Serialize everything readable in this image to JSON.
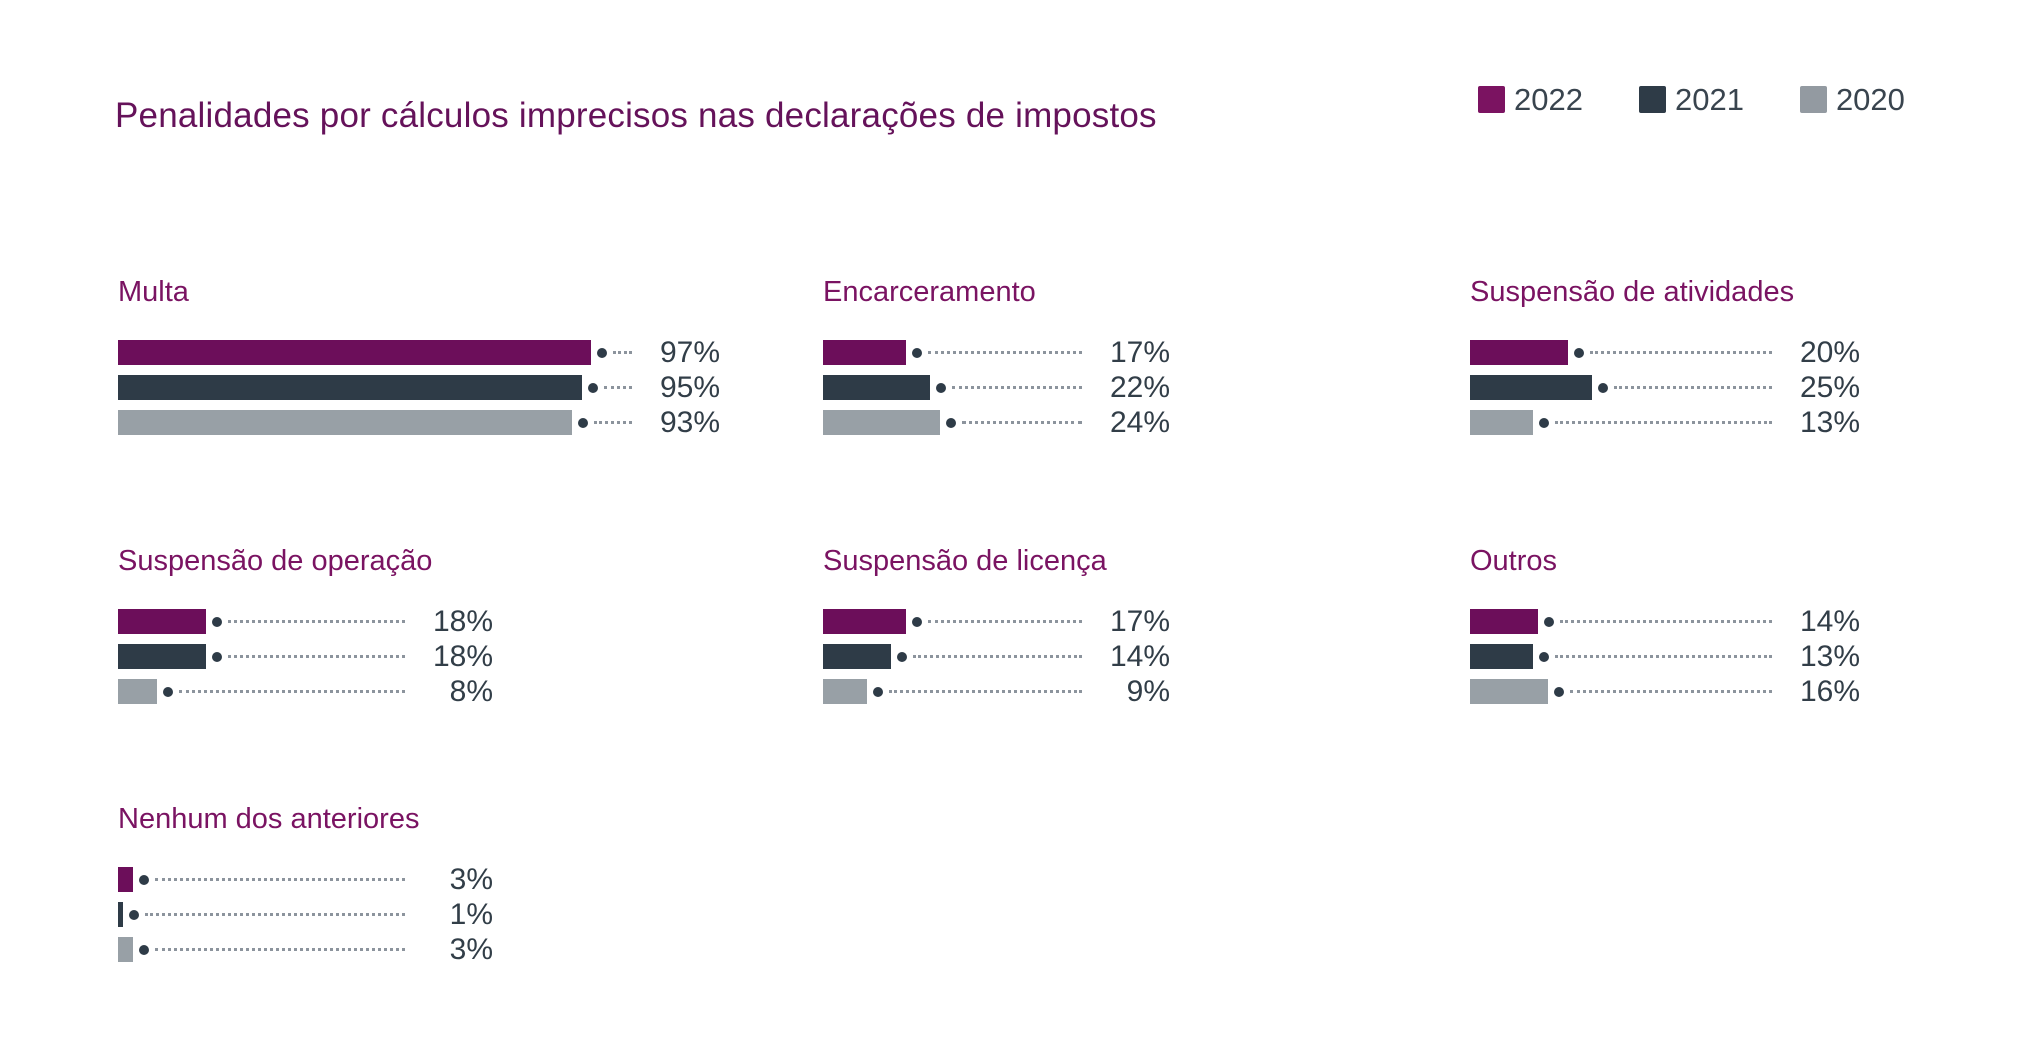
{
  "title": "Penalidades por cálculos imprecisos nas declarações de impostos",
  "legend": {
    "items": [
      {
        "label": "2022",
        "color": "#7B1361"
      },
      {
        "label": "2021",
        "color": "#2E3B47"
      },
      {
        "label": "2020",
        "color": "#939AA1"
      }
    ]
  },
  "colors": {
    "title": "#65125A",
    "panel_title": "#7A1362",
    "value_label": "#323E48",
    "leader_dot": "#2E3B47",
    "leader_line": "#8C949D",
    "background": "#FFFFFF"
  },
  "chart_data": {
    "type": "bar",
    "orientation": "horizontal",
    "title": "Penalidades por cálculos imprecisos nas declarações de impostos",
    "unit": "%",
    "xlim": [
      0,
      100
    ],
    "grid": false,
    "legend_position": "top-right",
    "series_names": [
      "2022",
      "2021",
      "2020"
    ],
    "series_colors": [
      "#6C0E5A",
      "#2E3B47",
      "#98A0A6"
    ],
    "panels": [
      {
        "title": "Multa",
        "values": [
          97,
          95,
          93
        ],
        "labels": [
          "97%",
          "95%",
          "93%"
        ]
      },
      {
        "title": "Encarceramento",
        "values": [
          17,
          22,
          24
        ],
        "labels": [
          "17%",
          "22%",
          "24%"
        ]
      },
      {
        "title": "Suspensão de atividades",
        "values": [
          20,
          25,
          13
        ],
        "labels": [
          "20%",
          "25%",
          "13%"
        ]
      },
      {
        "title": "Suspensão de operação",
        "values": [
          18,
          18,
          8
        ],
        "labels": [
          "18%",
          "18%",
          "8%"
        ]
      },
      {
        "title": "Suspensão de licença",
        "values": [
          17,
          14,
          9
        ],
        "labels": [
          "17%",
          "14%",
          "9%"
        ]
      },
      {
        "title": "Outros",
        "values": [
          14,
          13,
          16
        ],
        "labels": [
          "14%",
          "13%",
          "16%"
        ]
      },
      {
        "title": "Nenhum dos anteriores",
        "values": [
          3,
          1,
          3
        ],
        "labels": [
          "3%",
          "1%",
          "3%"
        ]
      }
    ]
  }
}
